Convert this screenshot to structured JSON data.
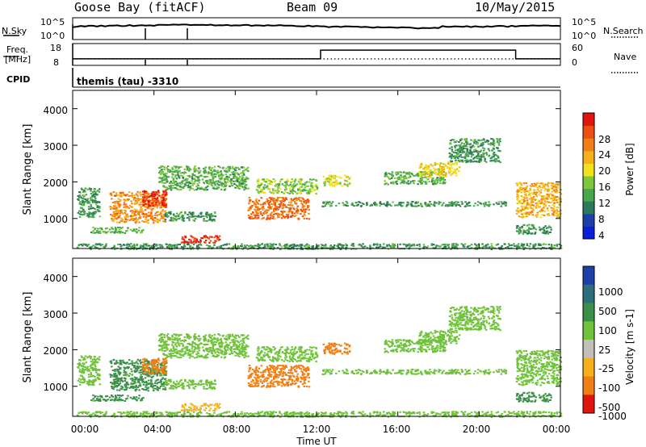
{
  "header": {
    "station": "Goose Bay (fitACF)",
    "beam": "Beam 09",
    "date": "10/May/2015"
  },
  "noise_panel": {
    "left_label": "N.Sky",
    "right_label": "N.Search",
    "left_ticks": [
      "10^5",
      "10^0"
    ],
    "right_ticks": [
      "10^5",
      "10^0"
    ]
  },
  "freq_panel": {
    "left_label_1": "Freq.",
    "left_label_2": "[MHz]",
    "right_label": "Nave",
    "left_ticks": [
      "18",
      "8"
    ],
    "right_ticks": [
      "60",
      "0"
    ]
  },
  "cpid": {
    "label": "CPID",
    "text": "themis (tau) -3310"
  },
  "power_panel": {
    "ylabel": "Slant Range [km]",
    "yticks": [
      "4000",
      "3000",
      "2000",
      "1000"
    ],
    "colorbar_label": "Power [dB]",
    "colorbar_ticks": [
      "28",
      "24",
      "20",
      "16",
      "12",
      "8",
      "4"
    ],
    "colors": [
      "#0a1fd6",
      "#1f3fa8",
      "#2c7a5b",
      "#4aa64a",
      "#7cc83c",
      "#f2e21a",
      "#f5b01c",
      "#f07f15",
      "#ec4f12",
      "#e0160e"
    ]
  },
  "velocity_panel": {
    "ylabel": "Slant Range [km]",
    "yticks": [
      "4000",
      "3000",
      "2000",
      "1000"
    ],
    "colorbar_label": "Velocity [m s-1]",
    "colorbar_ticks": [
      "1000",
      "500",
      "100",
      "25",
      "-25",
      "-100",
      "-500",
      "-1000"
    ],
    "colors": [
      "#1f3fa8",
      "#2c6e7a",
      "#3b8f4a",
      "#6fc23a",
      "#c0c0b8",
      "#f5b01c",
      "#f07f15",
      "#e0160e"
    ]
  },
  "xaxis": {
    "label": "Time UT",
    "ticks": [
      "00:00",
      "04:00",
      "08:00",
      "12:00",
      "16:00",
      "20:00",
      "00:00"
    ]
  },
  "chart_data": {
    "type": "heatmap",
    "title": "Goose Bay (fitACF)  Beam 09  10/May/2015",
    "xlabel": "Time UT",
    "ylabel": "Slant Range [km]",
    "xlim_hours": [
      0,
      24
    ],
    "ylim_km": [
      180,
      4500
    ],
    "freq_segments_mhz": [
      {
        "start_h": 0,
        "end_h": 12.2,
        "value": 11
      },
      {
        "start_h": 12.2,
        "end_h": 21.8,
        "value": 15
      },
      {
        "start_h": 21.8,
        "end_h": 24,
        "value": 11
      }
    ],
    "scatter_regions": [
      {
        "t0": 0.2,
        "t1": 1.3,
        "r0": 1050,
        "r1": 1850,
        "power_db": 8,
        "velocity": 25
      },
      {
        "t0": 1.8,
        "t1": 4.6,
        "r0": 900,
        "r1": 1750,
        "power_db": 20,
        "velocity": 100
      },
      {
        "t0": 3.4,
        "t1": 4.6,
        "r0": 1350,
        "r1": 1800,
        "power_db": 26,
        "velocity": -500
      },
      {
        "t0": 0.8,
        "t1": 3.5,
        "r0": 620,
        "r1": 780,
        "power_db": 10,
        "velocity": 100
      },
      {
        "t0": 4.2,
        "t1": 8.6,
        "r0": 1800,
        "r1": 2450,
        "power_db": 10,
        "velocity": 25
      },
      {
        "t0": 4.5,
        "t1": 7.0,
        "r0": 950,
        "r1": 1200,
        "power_db": 8,
        "velocity": 25
      },
      {
        "t0": 5.3,
        "t1": 7.2,
        "r0": 350,
        "r1": 550,
        "power_db": 26,
        "velocity": -100
      },
      {
        "t0": 8.6,
        "t1": 11.6,
        "r0": 1000,
        "r1": 1600,
        "power_db": 22,
        "velocity": -500
      },
      {
        "t0": 9.0,
        "t1": 12.0,
        "r0": 1700,
        "r1": 2100,
        "power_db": 12,
        "velocity": 25
      },
      {
        "t0": 12.3,
        "t1": 13.6,
        "r0": 1900,
        "r1": 2200,
        "power_db": 14,
        "velocity": -500
      },
      {
        "t0": 15.3,
        "t1": 18.3,
        "r0": 1950,
        "r1": 2300,
        "power_db": 10,
        "velocity": 25
      },
      {
        "t0": 17.0,
        "t1": 19.0,
        "r0": 2150,
        "r1": 2550,
        "power_db": 16,
        "velocity": 25
      },
      {
        "t0": 18.5,
        "t1": 21.0,
        "r0": 2550,
        "r1": 3200,
        "power_db": 8,
        "velocity": 25
      },
      {
        "t0": 12.2,
        "t1": 21.4,
        "r0": 1350,
        "r1": 1480,
        "power_db": 8,
        "velocity": 25
      },
      {
        "t0": 21.8,
        "t1": 24.0,
        "r0": 1050,
        "r1": 2000,
        "power_db": 18,
        "velocity": 25
      },
      {
        "t0": 21.8,
        "t1": 23.5,
        "r0": 600,
        "r1": 850,
        "power_db": 8,
        "velocity": 100
      },
      {
        "t0": 0.0,
        "t1": 24.0,
        "r0": 180,
        "r1": 330,
        "power_db": 8,
        "velocity": 25
      }
    ]
  }
}
